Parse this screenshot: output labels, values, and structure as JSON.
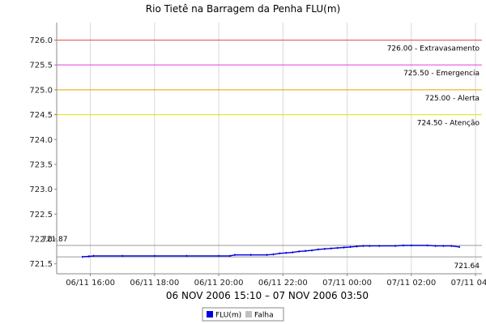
{
  "chart_data": {
    "type": "line",
    "title": "Rio Tietê na Barragem da Penha FLU(m)",
    "xlabel": "06 NOV 2006 15:10 – 07 NOV 2006 03:50",
    "ylabel": "",
    "ylim": [
      721.3,
      726.35
    ],
    "yticks": [
      721.5,
      722.0,
      722.5,
      723.0,
      723.5,
      724.0,
      724.5,
      725.0,
      725.5,
      726.0
    ],
    "ytick_labels": [
      "721.5",
      "722.0",
      "722.5",
      "723.0",
      "723.5",
      "724.0",
      "724.5",
      "725.0",
      "725.5",
      "726.0"
    ],
    "xlim": [
      14.95,
      28.2
    ],
    "xticks": [
      16,
      18,
      20,
      22,
      24,
      26,
      28
    ],
    "xtick_labels": [
      "06/11 16:00",
      "06/11 18:00",
      "06/11 20:00",
      "06/11 22:00",
      "07/11 00:00",
      "07/11 02:00",
      "07/11 04:00"
    ],
    "grid": "vertical",
    "thresholds": [
      {
        "value": 726.0,
        "label": "726.00 - Extravasamento",
        "color": "#e05050"
      },
      {
        "value": 725.5,
        "label": "725.50 - Emergencia",
        "color": "#e040e0"
      },
      {
        "value": 725.0,
        "label": "725.00 - Alerta",
        "color": "#e8a000"
      },
      {
        "value": 724.5,
        "label": "724.50 - Atenção",
        "color": "#e8e000"
      }
    ],
    "reference_lines": [
      {
        "value": 721.87,
        "label": "721.87",
        "color": "#999999",
        "label_side": "left"
      },
      {
        "value": 721.64,
        "label": "721.64",
        "color": "#999999",
        "label_side": "right"
      }
    ],
    "series": [
      {
        "name": "FLU(m)",
        "color": "#0000dd",
        "x": [
          15.75,
          15.95,
          16.1,
          17.0,
          18.0,
          19.0,
          20.0,
          20.35,
          20.5,
          21.0,
          21.5,
          21.7,
          21.9,
          22.1,
          22.3,
          22.5,
          22.7,
          22.9,
          23.1,
          23.3,
          23.5,
          23.7,
          23.9,
          24.1,
          24.3,
          24.5,
          24.7,
          25.0,
          25.5,
          25.75,
          26.0,
          26.5,
          26.75,
          27.0,
          27.25,
          27.5
        ],
        "y": [
          721.64,
          721.65,
          721.66,
          721.66,
          721.66,
          721.66,
          721.66,
          721.66,
          721.68,
          721.68,
          721.68,
          721.69,
          721.71,
          721.72,
          721.73,
          721.75,
          721.76,
          721.77,
          721.79,
          721.8,
          721.81,
          721.82,
          721.83,
          721.84,
          721.85,
          721.86,
          721.86,
          721.86,
          721.86,
          721.87,
          721.87,
          721.87,
          721.86,
          721.86,
          721.86,
          721.84
        ]
      },
      {
        "name": "Falha",
        "color": "#c0c0c0",
        "x": [],
        "y": []
      }
    ],
    "legend_position": "bottom-center"
  }
}
